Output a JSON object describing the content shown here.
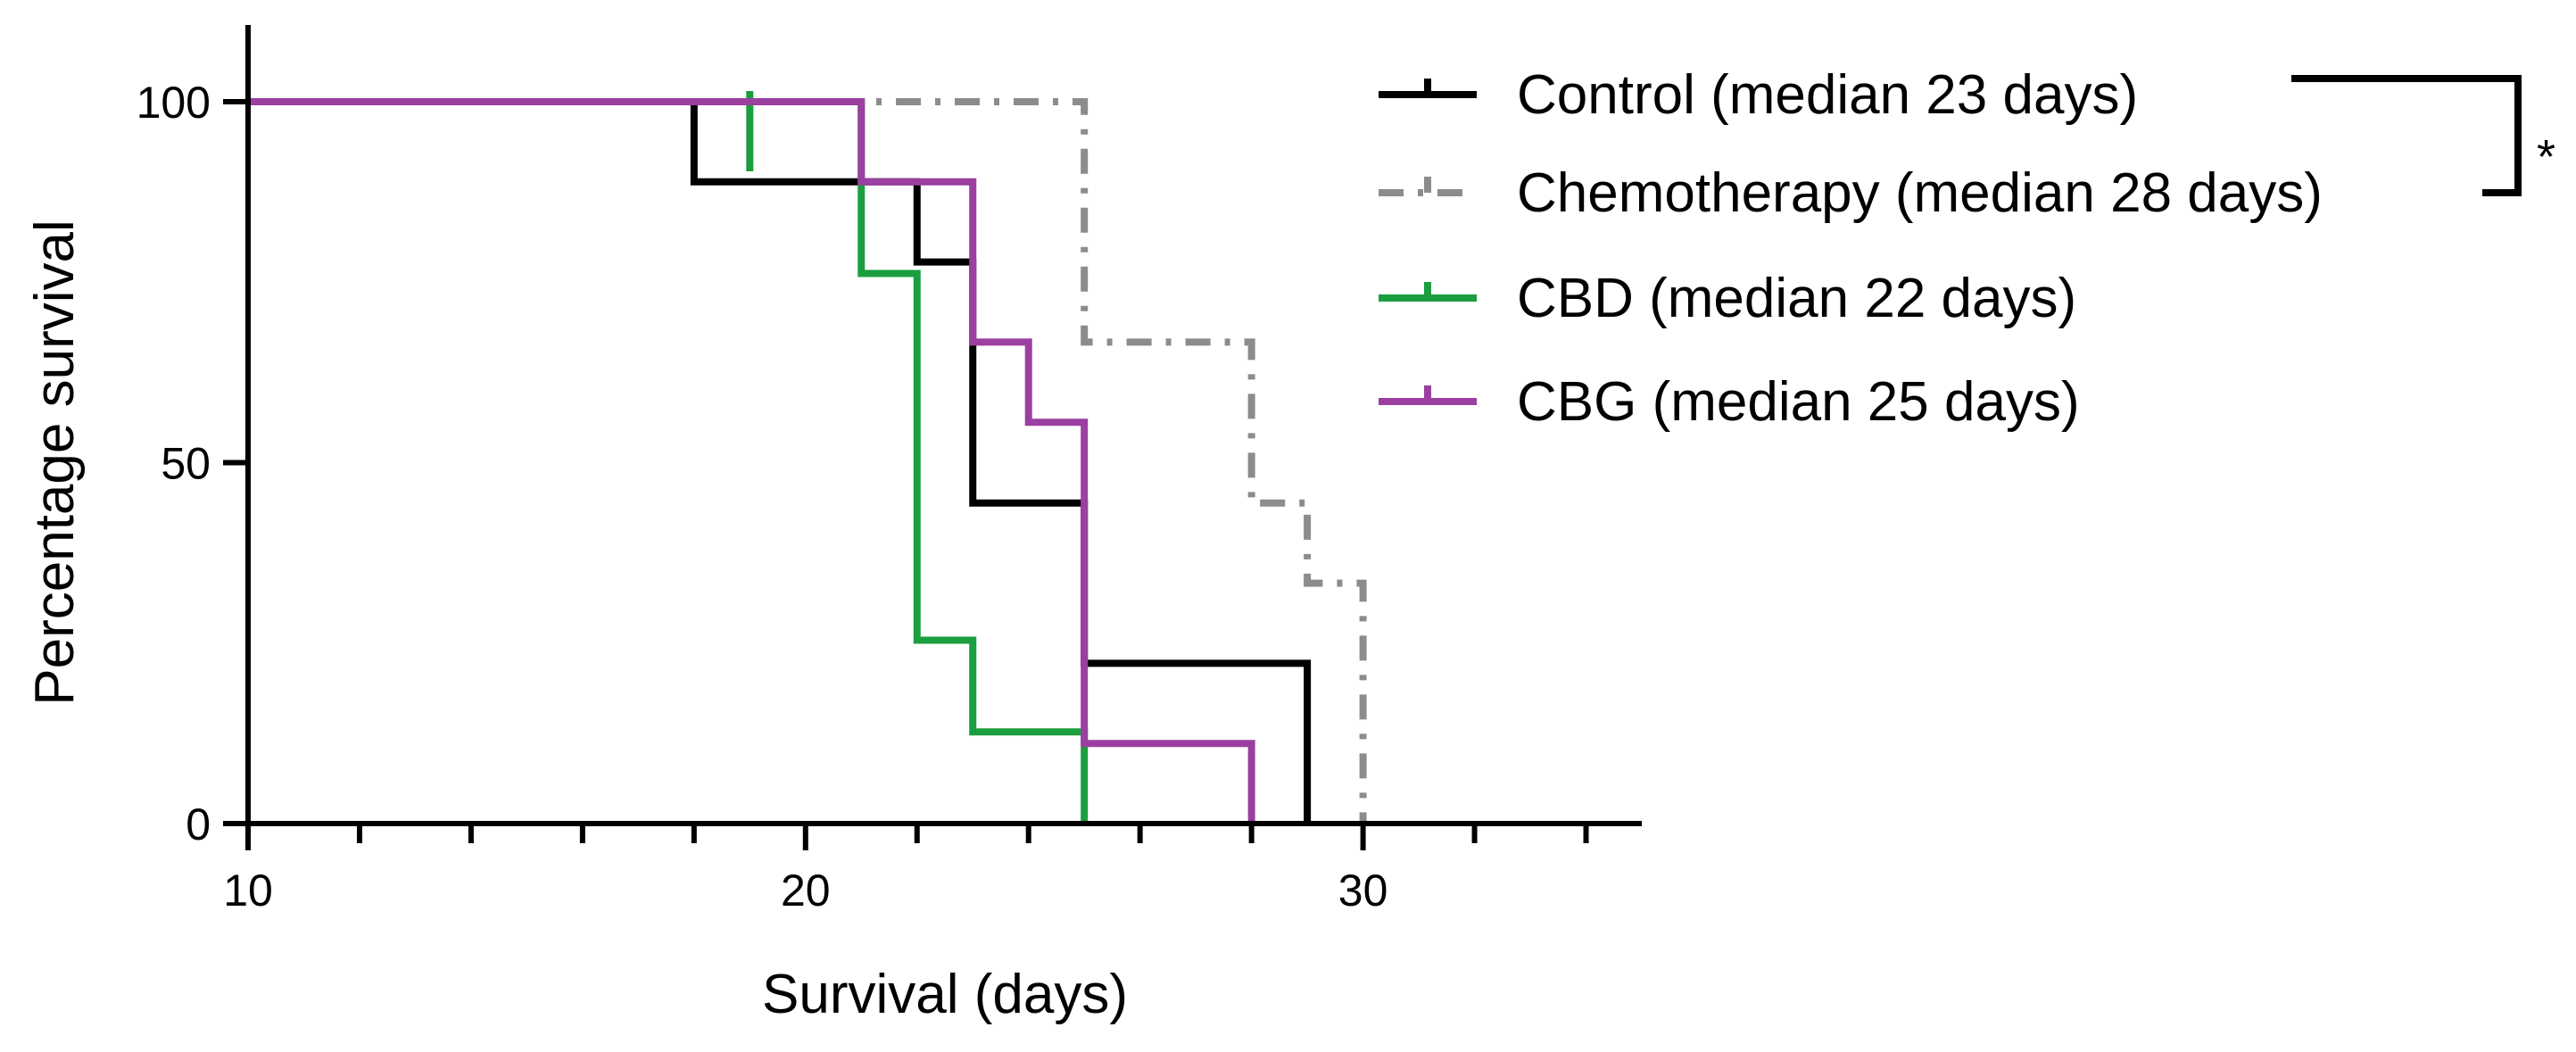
{
  "chart_data": {
    "type": "line",
    "step": true,
    "xlabel": "Survival (days)",
    "ylabel": "Percentage survival",
    "xlim": [
      10,
      35
    ],
    "ylim": [
      0,
      100
    ],
    "x_ticks": [
      10,
      20,
      30
    ],
    "x_minor_step": 2,
    "y_ticks": [
      0,
      50,
      100
    ],
    "grid": false,
    "legend_position": "top-right",
    "series": [
      {
        "name": "Control (median 23 days)",
        "color": "#000000",
        "dash": "solid",
        "x": [
          10,
          18,
          22,
          23,
          25,
          29
        ],
        "y": [
          100,
          88.9,
          77.8,
          44.4,
          22.2,
          0
        ]
      },
      {
        "name": "Chemotherapy (median 28 days)",
        "color": "#8c8c8c",
        "dash": "dashdot",
        "x": [
          10,
          25,
          28,
          29,
          30
        ],
        "y": [
          100,
          66.7,
          44.4,
          33.3,
          0
        ]
      },
      {
        "name": "CBD (median 22 days)",
        "color": "#1a9e3f",
        "dash": "solid",
        "x": [
          10,
          21,
          22,
          23,
          25
        ],
        "y": [
          100,
          76.2,
          25.4,
          12.7,
          0
        ],
        "censored": [
          {
            "x": 19,
            "y": 100
          }
        ]
      },
      {
        "name": "CBG (median 25 days)",
        "color": "#9b3fa1",
        "dash": "solid",
        "x": [
          10,
          21,
          23,
          24,
          25,
          28
        ],
        "y": [
          100,
          88.9,
          66.7,
          55.6,
          11.1,
          0
        ]
      }
    ],
    "annotations": [
      {
        "type": "significance-bracket",
        "between": [
          "Control (median 23 days)",
          "Chemotherapy (median 28 days)"
        ],
        "label": "*"
      }
    ]
  }
}
